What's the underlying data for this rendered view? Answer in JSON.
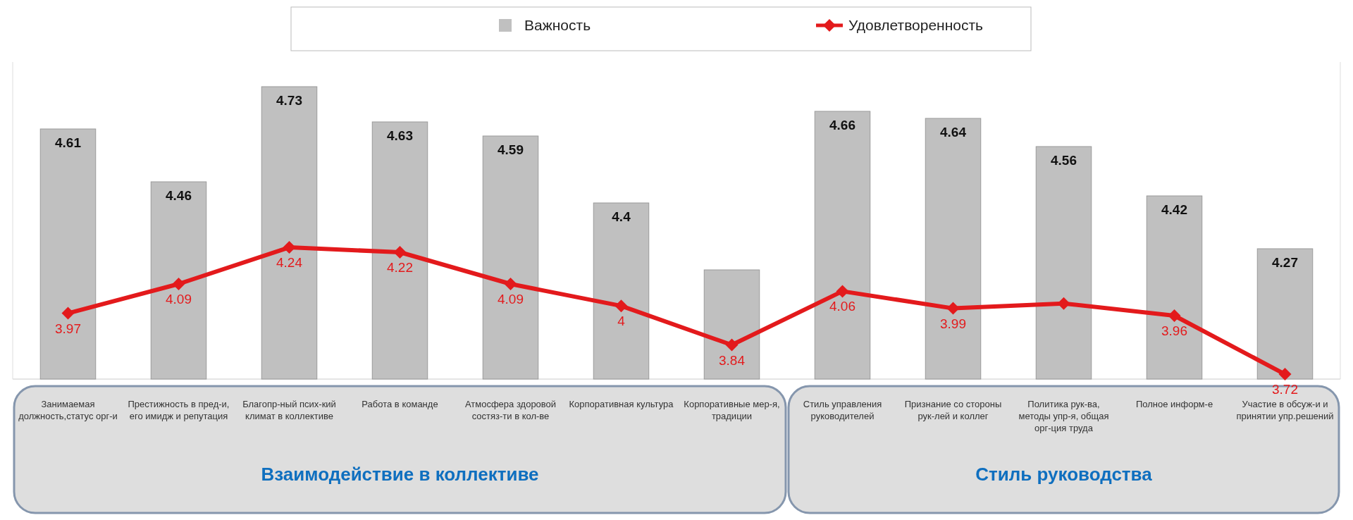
{
  "chart_data": {
    "type": "bar",
    "categories": [
      "Занимаемая должность,статус орг-и",
      "Престижность в пред-и, его имидж и репутация",
      "Благопр-ный псих-кий климат в коллективе",
      "Работа в команде",
      "Атмосфера здоровой состяз-ти в кол-ве",
      "Корпоративная культура",
      "Корпоративные мер-я, традиции",
      "Стиль управления руководителей",
      "Признание со стороны рук-лей и коллег",
      "Политика рук-ва, методы упр-я, общая орг-ция труда",
      "Полное информ-е",
      "Участие в обсуж-и и принятии упр.решений"
    ],
    "series": [
      {
        "name": "Важность",
        "color": "#c0c0c0",
        "values": [
          4.61,
          4.46,
          4.73,
          4.63,
          4.59,
          4.4,
          4.21,
          4.66,
          4.64,
          4.56,
          4.42,
          4.27
        ],
        "value_labels": [
          "4.61",
          "4.46",
          "4.73",
          "4.63",
          "4.59",
          "4.4",
          null,
          "4.66",
          "4.64",
          "4.56",
          "4.42",
          "4.27"
        ]
      },
      {
        "name": "Удовлетворенность",
        "type": "line",
        "axis": "y2",
        "color": "#e31a1c",
        "values": [
          3.97,
          4.09,
          4.24,
          4.22,
          4.09,
          4,
          3.84,
          4.06,
          3.99,
          4.01,
          3.96,
          3.72
        ],
        "value_labels": [
          "3.97",
          "4.09",
          "4.24",
          "4.22",
          "4.09",
          "4",
          "3.84",
          "4.06",
          "3.99",
          null,
          "3.96",
          "3.72"
        ]
      }
    ],
    "ylim": [
      3.9,
      4.8
    ],
    "y2lim": [
      3.7,
      5.0
    ],
    "tick_labels": "x",
    "legend": "top",
    "marker": "diamond",
    "annotations": [
      "Взаимодействие в коллективе",
      "Стиль руководства"
    ]
  }
}
